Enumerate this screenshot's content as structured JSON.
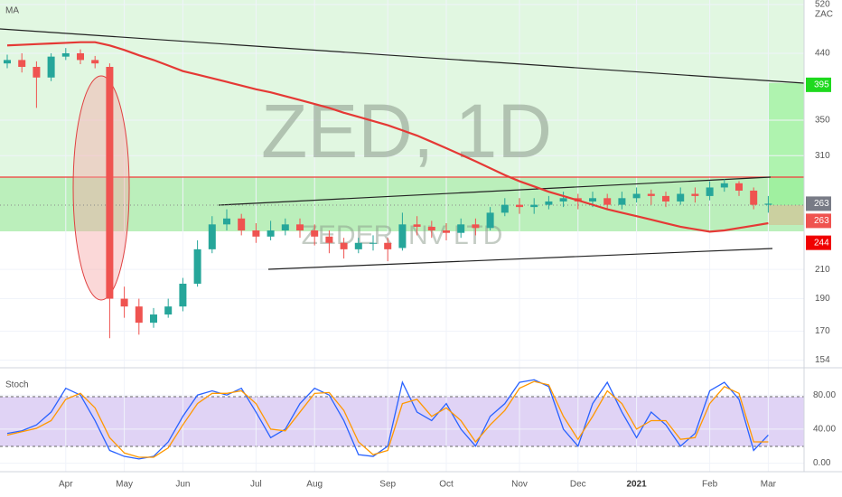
{
  "chart_data": [
    {
      "type": "candlestick",
      "title": "ZED, 1D",
      "subtitle": "ZEDER INV LTD",
      "unit_label": "ZAC",
      "categories": [
        null,
        null,
        null,
        null,
        "Apr",
        null,
        null,
        null,
        "May",
        null,
        null,
        null,
        "Jun",
        null,
        null,
        null,
        null,
        "Jul",
        null,
        null,
        null,
        "Aug",
        null,
        null,
        null,
        null,
        "Sep",
        null,
        null,
        null,
        "Oct",
        null,
        null,
        null,
        null,
        "Nov",
        null,
        null,
        null,
        "Dec",
        null,
        null,
        null,
        "2021",
        null,
        null,
        null,
        null,
        "Feb",
        null,
        null,
        null,
        "Mar"
      ],
      "open": [
        425,
        430,
        420,
        405,
        435,
        440,
        430,
        420,
        190,
        185,
        175,
        180,
        185,
        200,
        225,
        245,
        250,
        240,
        235,
        240,
        245,
        240,
        235,
        230,
        225,
        230,
        230,
        226,
        245,
        243,
        240,
        238,
        245,
        242,
        255,
        262,
        260,
        262,
        265,
        268,
        265,
        268,
        262,
        268,
        272,
        270,
        265,
        272,
        270,
        278,
        282,
        275,
        262
      ],
      "high": [
        438,
        440,
        428,
        440,
        448,
        446,
        436,
        425,
        198,
        190,
        184,
        190,
        204,
        232,
        252,
        258,
        254,
        246,
        248,
        250,
        250,
        245,
        240,
        234,
        234,
        236,
        234,
        255,
        252,
        248,
        246,
        250,
        250,
        260,
        268,
        268,
        268,
        270,
        274,
        272,
        274,
        272,
        274,
        278,
        276,
        274,
        278,
        278,
        284,
        286,
        284,
        278,
        270
      ],
      "low": [
        418,
        412,
        365,
        400,
        430,
        424,
        418,
        166,
        178,
        168,
        172,
        178,
        182,
        198,
        222,
        240,
        236,
        230,
        232,
        236,
        234,
        228,
        222,
        218,
        222,
        224,
        216,
        224,
        236,
        234,
        232,
        234,
        236,
        240,
        252,
        254,
        254,
        258,
        260,
        258,
        260,
        258,
        258,
        264,
        262,
        260,
        262,
        264,
        266,
        274,
        270,
        258,
        255
      ],
      "close": [
        430,
        420,
        405,
        435,
        440,
        430,
        425,
        190,
        185,
        175,
        180,
        185,
        200,
        225,
        245,
        250,
        240,
        235,
        240,
        245,
        240,
        235,
        230,
        225,
        230,
        230,
        225,
        245,
        243,
        240,
        238,
        245,
        242,
        255,
        262,
        260,
        262,
        265,
        268,
        265,
        268,
        262,
        268,
        272,
        270,
        265,
        272,
        270,
        278,
        282,
        275,
        262,
        263
      ],
      "up_color": "#26a69a",
      "down_color": "#ef5350",
      "series": [
        {
          "name": "MA",
          "color": "#e53935",
          "values": [
            452,
            453,
            454,
            455,
            456,
            457,
            457,
            452,
            445,
            437,
            430,
            422,
            414,
            409,
            404,
            399,
            394,
            389,
            385,
            380,
            375,
            370,
            365,
            359,
            354,
            349,
            344,
            338,
            332,
            325,
            318,
            311,
            304,
            297,
            290,
            284,
            279,
            274,
            270,
            266,
            262,
            258,
            255,
            252,
            249,
            246,
            243,
            241,
            239,
            240,
            242,
            244,
            246
          ]
        }
      ],
      "ylim": [
        150,
        528
      ],
      "log": true,
      "yticks": [
        520,
        440,
        350,
        310,
        210,
        190,
        170,
        154
      ],
      "price_labels": [
        {
          "value": 395,
          "color": "#1ed91e"
        },
        {
          "value": 263,
          "color": "#787b86"
        },
        {
          "value": 263,
          "color": "#ef5350"
        },
        {
          "value": 244,
          "color": "#f00000"
        }
      ]
    },
    {
      "type": "line",
      "title": "Stoch",
      "series": [
        {
          "color": "#2962ff",
          "values": [
            35,
            38,
            45,
            60,
            88,
            80,
            50,
            15,
            8,
            5,
            8,
            25,
            55,
            80,
            85,
            80,
            88,
            60,
            30,
            40,
            70,
            88,
            80,
            50,
            10,
            8,
            20,
            95,
            60,
            50,
            70,
            40,
            20,
            55,
            70,
            95,
            98,
            90,
            40,
            20,
            70,
            95,
            60,
            30,
            60,
            45,
            20,
            35,
            85,
            95,
            75,
            15,
            33
          ]
        },
        {
          "color": "#ff9800",
          "values": [
            33,
            37,
            41,
            50,
            75,
            82,
            65,
            30,
            12,
            7,
            7,
            18,
            45,
            70,
            82,
            82,
            85,
            70,
            40,
            38,
            60,
            82,
            83,
            62,
            25,
            10,
            15,
            70,
            75,
            55,
            65,
            50,
            25,
            45,
            62,
            88,
            96,
            92,
            55,
            28,
            55,
            85,
            70,
            40,
            50,
            50,
            28,
            30,
            70,
            90,
            82,
            25,
            25
          ]
        }
      ],
      "ylim": [
        -10,
        111
      ],
      "yticks": [
        {
          "value": 80,
          "label": "80.00"
        },
        {
          "value": 40,
          "label": "40.00"
        },
        {
          "value": 0,
          "label": "0.00"
        }
      ]
    }
  ]
}
